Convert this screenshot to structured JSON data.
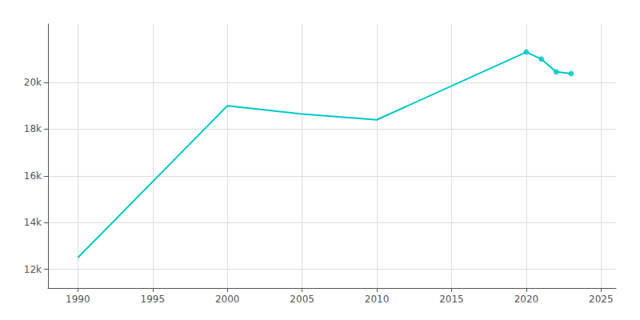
{
  "chart_data": {
    "type": "line",
    "x": [
      1990,
      2000,
      2005,
      2010,
      2020,
      2021,
      2022,
      2023
    ],
    "series": [
      {
        "type": "line",
        "color": "#00c8c8",
        "values": [
          12500,
          19000,
          18650,
          18400,
          21300,
          21000,
          20450,
          20380
        ]
      },
      {
        "type": "scatter",
        "color": "#00c8c8",
        "marker": "circle",
        "values": [
          null,
          null,
          null,
          null,
          21300,
          21000,
          20450,
          20380
        ]
      }
    ],
    "xlim": [
      1988,
      2026
    ],
    "ylim": [
      11200,
      22500
    ],
    "xticks": [
      1990,
      1995,
      2000,
      2005,
      2010,
      2015,
      2020,
      2025
    ],
    "yticks": [
      {
        "value": 12000,
        "label": "12k"
      },
      {
        "value": 14000,
        "label": "14k"
      },
      {
        "value": 16000,
        "label": "16k"
      },
      {
        "value": 18000,
        "label": "18k"
      },
      {
        "value": 20000,
        "label": "20k"
      }
    ],
    "grid": true
  }
}
